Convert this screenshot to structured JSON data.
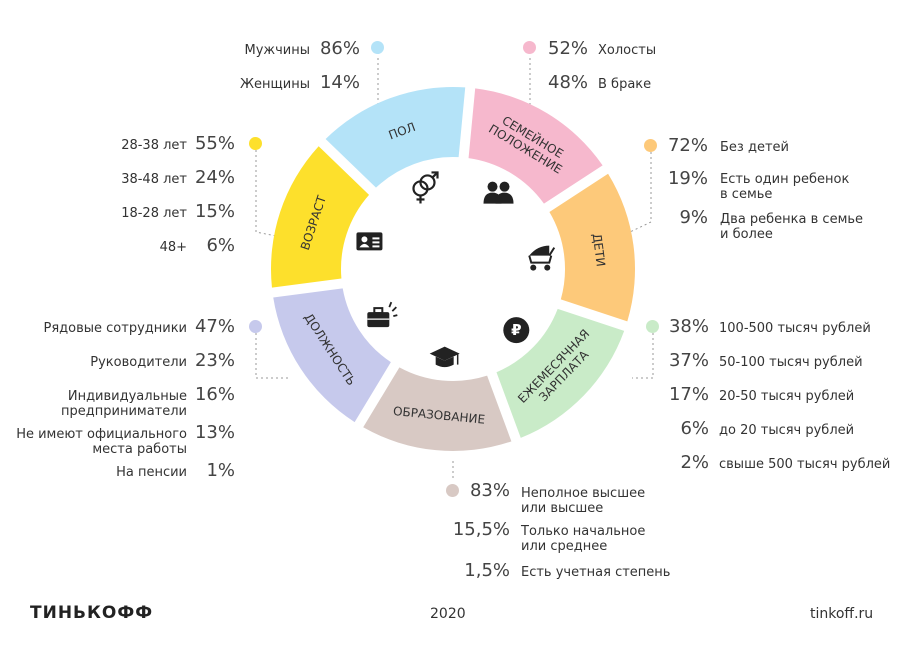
{
  "chart_data": {
    "type": "pie",
    "title": "",
    "segments": [
      {
        "key": "pol",
        "label": "ПОЛ",
        "color": "#b4e3f8",
        "icon": "gender-icon",
        "items": [
          {
            "pct": "86%",
            "label": "Мужчины"
          },
          {
            "pct": "14%",
            "label": "Женщины"
          }
        ]
      },
      {
        "key": "semeynoe",
        "label": "СЕМЕЙНОЕ ПОЛОЖЕНИЕ",
        "color": "#f6b8cd",
        "icon": "couple-icon",
        "items": [
          {
            "pct": "52%",
            "label": "Холосты"
          },
          {
            "pct": "48%",
            "label": "В браке"
          }
        ]
      },
      {
        "key": "deti",
        "label": "ДЕТИ",
        "color": "#fdc97a",
        "icon": "stroller-icon",
        "items": [
          {
            "pct": "72%",
            "label": "Без детей"
          },
          {
            "pct": "19%",
            "label": "Есть один ребенок\nв семье"
          },
          {
            "pct": "9%",
            "label": "Два ребенка в семье\nи более"
          }
        ]
      },
      {
        "key": "zarplata",
        "label": "ЕЖЕМЕСЯЧНАЯ ЗАРПЛАТА",
        "color": "#c9ebc8",
        "icon": "ruble-icon",
        "items": [
          {
            "pct": "38%",
            "label": "100-500 тысяч рублей"
          },
          {
            "pct": "37%",
            "label": "50-100 тысяч рублей"
          },
          {
            "pct": "17%",
            "label": "20-50 тысяч рублей"
          },
          {
            "pct": "6%",
            "label": "до 20 тысяч рублей"
          },
          {
            "pct": "2%",
            "label": "свыше 500 тысяч рублей"
          }
        ]
      },
      {
        "key": "obrazovanie",
        "label": "ОБРАЗОВАНИЕ",
        "color": "#d8c9c4",
        "icon": "graduation-cap-icon",
        "items": [
          {
            "pct": "83%",
            "label": "Неполное высшее\nили высшее"
          },
          {
            "pct": "15,5%",
            "label": "Только начальное\nили среднее"
          },
          {
            "pct": "1,5%",
            "label": "Есть учетная степень"
          }
        ]
      },
      {
        "key": "dolzhnost",
        "label": "ДОЛЖНОСТЬ",
        "color": "#c6c9ec",
        "icon": "briefcase-icon",
        "items": [
          {
            "pct": "47%",
            "label": "Рядовые сотрудники"
          },
          {
            "pct": "23%",
            "label": "Руководители"
          },
          {
            "pct": "16%",
            "label": "Индивидуальные\nпредприниматели"
          },
          {
            "pct": "13%",
            "label": "Не имеют официального\nместа работы"
          },
          {
            "pct": "1%",
            "label": "На пенсии"
          }
        ]
      },
      {
        "key": "vozrast",
        "label": "ВОЗРАСТ",
        "color": "#fde02c",
        "icon": "id-card-icon",
        "items": [
          {
            "pct": "55%",
            "label": "28-38 лет"
          },
          {
            "pct": "24%",
            "label": "38-48 лет"
          },
          {
            "pct": "15%",
            "label": "18-28 лет"
          },
          {
            "pct": "6%",
            "label": "48+"
          }
        ]
      }
    ]
  },
  "footer": {
    "logo": "ТИНЬКОФФ",
    "year": "2020",
    "site": "tinkoff.ru"
  }
}
